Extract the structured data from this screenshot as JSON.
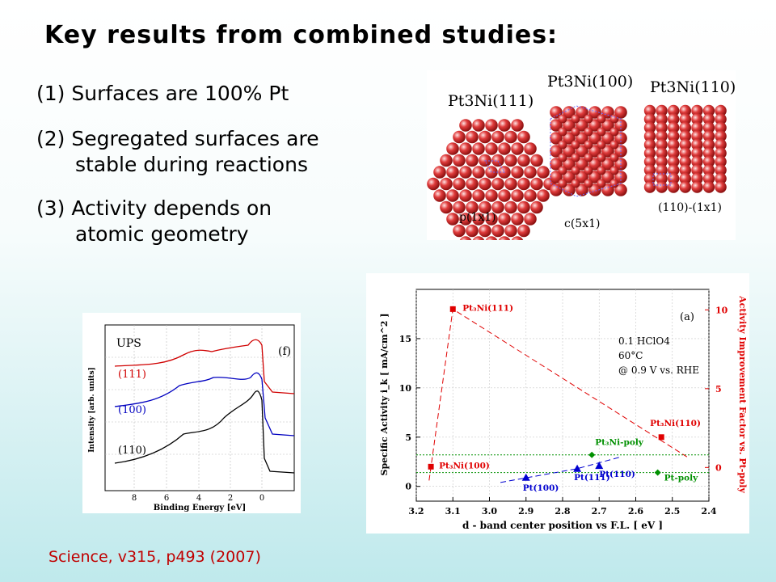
{
  "slide": {
    "title": "Key results from combined studies:",
    "points": [
      {
        "num": "(1)",
        "text": "Surfaces are 100% Pt",
        "cont": ""
      },
      {
        "num": "(2)",
        "text": "Segregated surfaces are",
        "cont": "stable during reactions"
      },
      {
        "num": "(3)",
        "text": "Activity depends on",
        "cont": "atomic geometry"
      }
    ],
    "citation": "Science, v315, p493  (2007)"
  },
  "surfaces": {
    "s111": {
      "name": "Pt3Ni(111)",
      "cell": "p(1x1)"
    },
    "s100": {
      "name": "Pt3Ni(100)",
      "cell": "c(5x1)"
    },
    "s110": {
      "name": "Pt3Ni(110)",
      "cell": "(110)-(1x1)"
    },
    "atom_color": "#e03c3c"
  },
  "ups": {
    "label": "UPS",
    "panel": "(f)",
    "ylabel": "Intensity [arb. units]",
    "xlabel": "Binding Energy [eV]",
    "xticks": [
      "8",
      "6",
      "4",
      "2",
      "0"
    ],
    "series": [
      {
        "name": "(111)",
        "color": "#d00000"
      },
      {
        "name": "(100)",
        "color": "#0000c0"
      },
      {
        "name": "(110)",
        "color": "#000000"
      }
    ]
  },
  "chart_data": {
    "type": "scatter",
    "panel": "(a)",
    "xlabel": "d - band center position vs F.L. [ eV ]",
    "ylabel": "Specific Activity  i_k [ mA/cm^2 ]",
    "ylabel_right": "Activity Improvement Factor vs. Pt-poly",
    "x_ticks": [
      "3.2",
      "3.1",
      "3.0",
      "2.9",
      "2.8",
      "2.7",
      "2.6",
      "2.5",
      "2.4"
    ],
    "y_ticks": [
      "0",
      "5",
      "10",
      "15"
    ],
    "y_right_ticks": [
      "0",
      "5",
      "10"
    ],
    "xlim": [
      3.2,
      2.4
    ],
    "ylim": [
      -1.5,
      20
    ],
    "conditions": [
      "0.1 HClO4",
      "60°C",
      "@ 0.9 V vs. RHE"
    ],
    "series": [
      {
        "name": "Pt3Ni",
        "color": "#e00000",
        "marker": "square",
        "points": [
          {
            "label": "Pt3Ni(111)",
            "x": 3.1,
            "y": 18.0
          },
          {
            "label": "Pt3Ni(100)",
            "x": 3.16,
            "y": 2.0
          },
          {
            "label": "Pt3Ni(110)",
            "x": 2.53,
            "y": 5.0
          }
        ]
      },
      {
        "name": "Pt",
        "color": "#0000d0",
        "marker": "triangle",
        "points": [
          {
            "label": "Pt(100)",
            "x": 2.9,
            "y": 0.9
          },
          {
            "label": "Pt(111)",
            "x": 2.76,
            "y": 1.8
          },
          {
            "label": "Pt(110)",
            "x": 2.7,
            "y": 2.1
          }
        ]
      },
      {
        "name": "poly",
        "color": "#009000",
        "marker": "diamond",
        "points": [
          {
            "label": "Pt3Ni-poly",
            "x": 2.72,
            "y": 3.2
          },
          {
            "label": "Pt-poly",
            "x": 2.54,
            "y": 1.4
          }
        ]
      }
    ]
  }
}
